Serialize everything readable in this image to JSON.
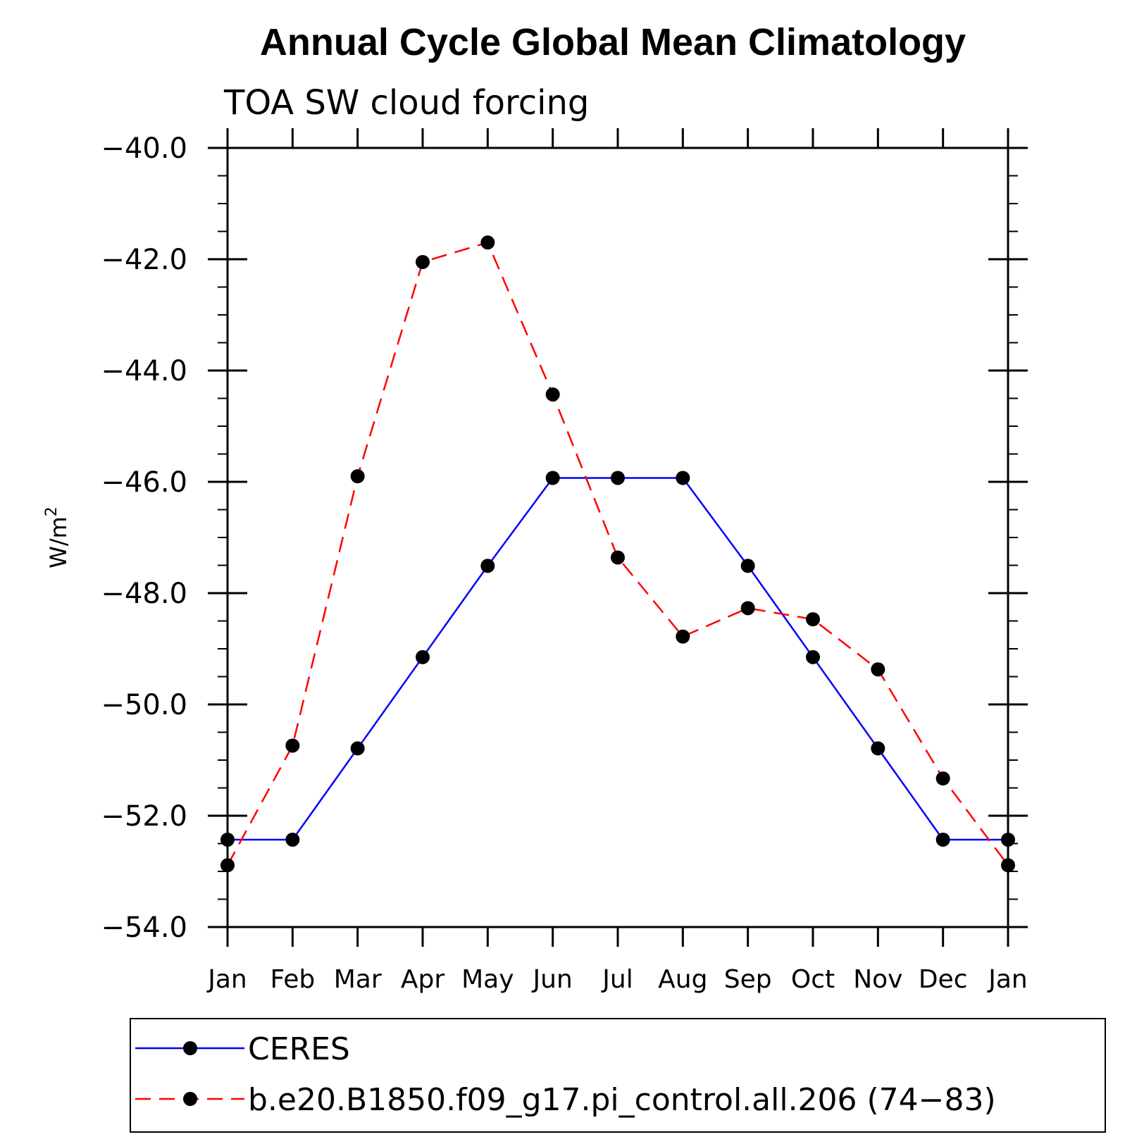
{
  "chart_data": {
    "type": "line",
    "title": "Annual Cycle Global Mean Climatology",
    "subtitle": "TOA SW cloud forcing",
    "ylabel": "W/m",
    "ylabel_superscript": "2",
    "xlabel": "",
    "ylim": [
      -54.0,
      -40.0
    ],
    "yticks": [
      -40.0,
      -42.0,
      -44.0,
      -46.0,
      -48.0,
      -50.0,
      -52.0,
      -54.0
    ],
    "ytick_labels": [
      "−40.0",
      "−42.0",
      "−44.0",
      "−46.0",
      "−48.0",
      "−50.0",
      "−52.0",
      "−54.0"
    ],
    "categories": [
      "Jan",
      "Feb",
      "Mar",
      "Apr",
      "May",
      "Jun",
      "Jul",
      "Aug",
      "Sep",
      "Oct",
      "Nov",
      "Dec",
      "Jan"
    ],
    "series": [
      {
        "name": "CERES",
        "color": "#0000ff",
        "dash": "solid",
        "values": [
          -52.43,
          -52.43,
          -50.79,
          -49.15,
          -47.51,
          -45.93,
          -45.93,
          -45.93,
          -47.51,
          -49.15,
          -50.79,
          -52.43,
          -52.43
        ]
      },
      {
        "name": "b.e20.B1850.f09_g17.pi_control.all.206 (74−83)",
        "color": "#ff0000",
        "dash": "dashed",
        "values": [
          -52.89,
          -50.74,
          -45.9,
          -42.05,
          -41.7,
          -44.43,
          -47.36,
          -48.78,
          -48.27,
          -48.47,
          -49.37,
          -51.33,
          -52.89
        ]
      }
    ],
    "legend_position": "bottom"
  }
}
